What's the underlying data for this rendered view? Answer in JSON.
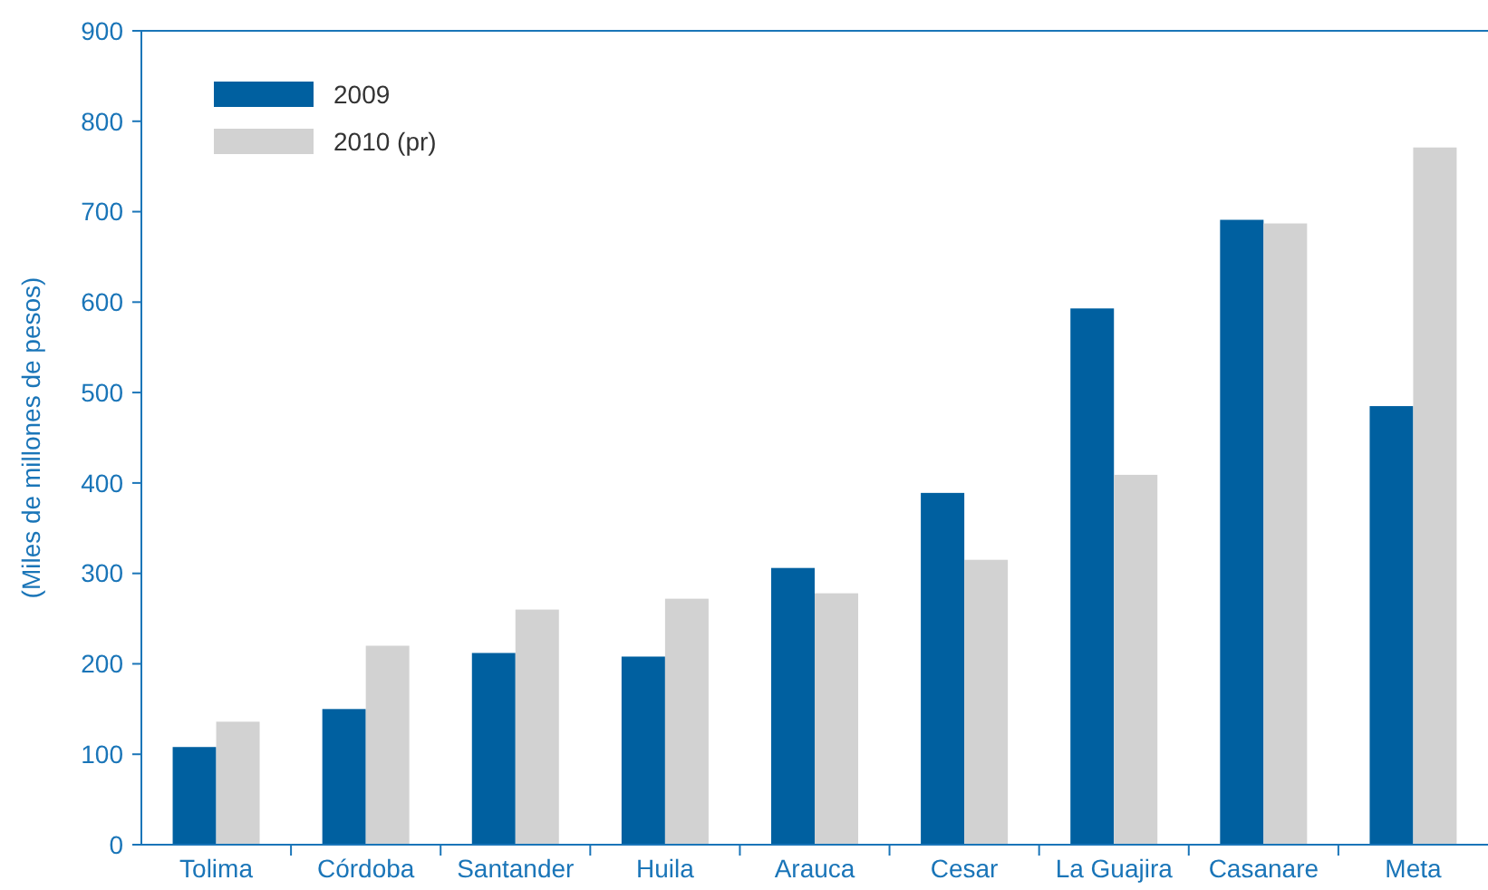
{
  "chart_data": {
    "type": "bar",
    "ylabel": "(Miles de millones de pesos)",
    "categories": [
      "Tolima",
      "Córdoba",
      "Santander",
      "Huila",
      "Arauca",
      "Cesar",
      "La Guajira",
      "Casanare",
      "Meta"
    ],
    "series": [
      {
        "name": "2009",
        "color": "#0060a0",
        "values": [
          108,
          150,
          212,
          208,
          306,
          389,
          593,
          691,
          485
        ]
      },
      {
        "name": "2010 (pr)",
        "color": "#d2d2d2",
        "values": [
          136,
          220,
          260,
          272,
          278,
          315,
          409,
          687,
          771
        ]
      }
    ],
    "ylim": [
      0,
      900
    ],
    "yticks": [
      0,
      100,
      200,
      300,
      400,
      500,
      600,
      700,
      800,
      900
    ],
    "grid": false,
    "legend": "top left"
  }
}
